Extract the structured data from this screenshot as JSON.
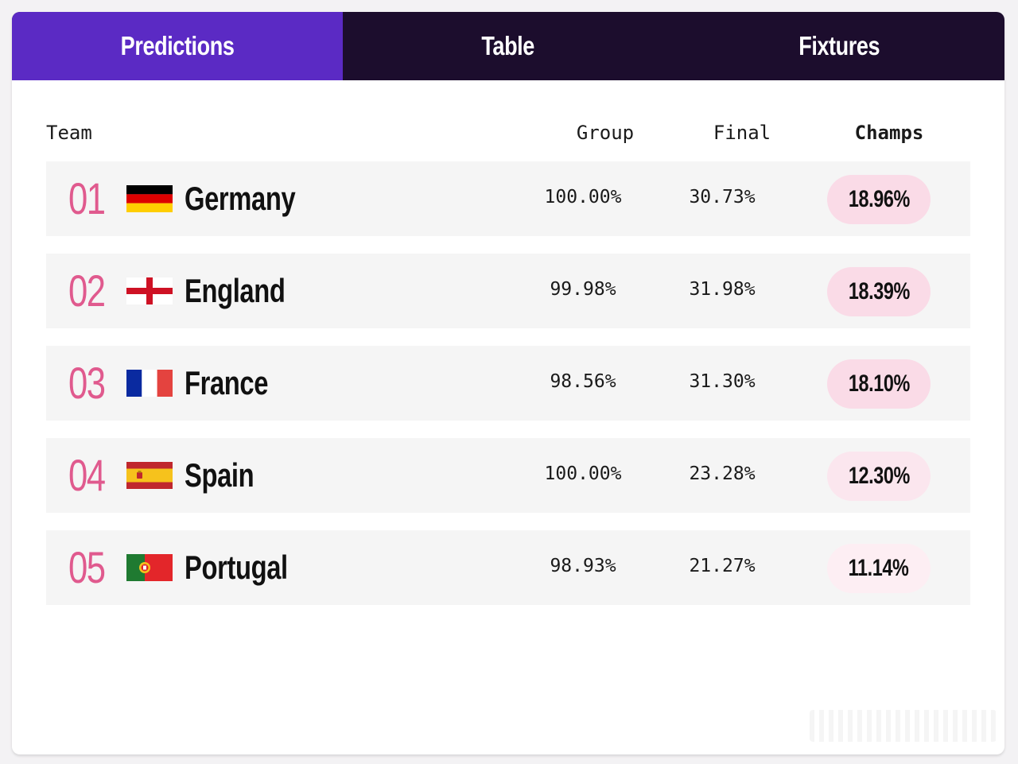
{
  "tabs": [
    {
      "label": "Predictions",
      "active": true
    },
    {
      "label": "Table",
      "active": false
    },
    {
      "label": "Fixtures",
      "active": false
    }
  ],
  "columns": {
    "team": "Team",
    "group": "Group",
    "final": "Final",
    "champs": "Champs"
  },
  "rows": [
    {
      "rank": "01",
      "team": "Germany",
      "flag": "germany-flag-icon",
      "group": "100.00%",
      "final": "30.73%",
      "champs": "18.96%"
    },
    {
      "rank": "02",
      "team": "England",
      "flag": "england-flag-icon",
      "group": "99.98%",
      "final": "31.98%",
      "champs": "18.39%"
    },
    {
      "rank": "03",
      "team": "France",
      "flag": "france-flag-icon",
      "group": "98.56%",
      "final": "31.30%",
      "champs": "18.10%"
    },
    {
      "rank": "04",
      "team": "Spain",
      "flag": "spain-flag-icon",
      "group": "100.00%",
      "final": "23.28%",
      "champs": "12.30%"
    },
    {
      "rank": "05",
      "team": "Portugal",
      "flag": "portugal-flag-icon",
      "group": "98.93%",
      "final": "21.27%",
      "champs": "11.14%"
    }
  ],
  "colors": {
    "tab_active": "#5b2ac4",
    "tab_bar": "#1c0d2d",
    "rank": "#e05a8e",
    "champs_pill": "#fadbe7"
  }
}
